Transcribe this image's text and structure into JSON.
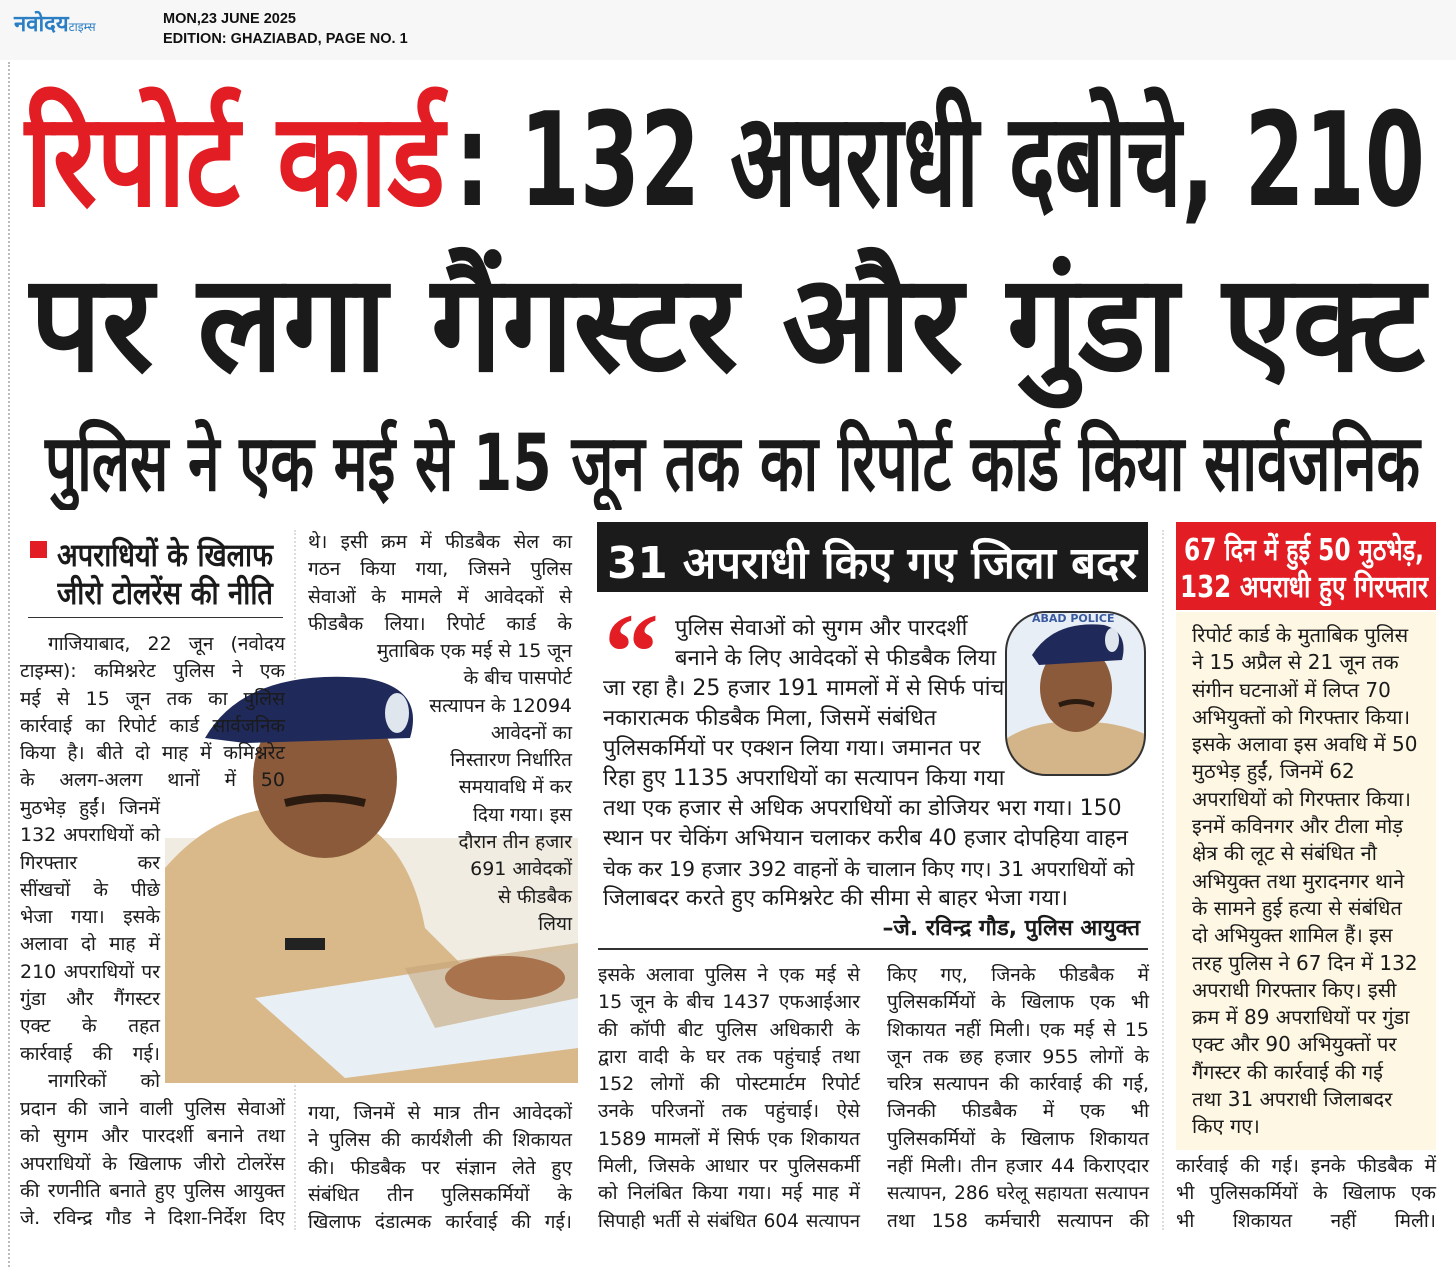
{
  "masthead": {
    "logo_main": "नवोदय",
    "logo_sub": "टाइम्स",
    "date": "MON,23 JUNE 2025",
    "edition": "EDITION: GHAZIABAD, PAGE NO. 1"
  },
  "headline": {
    "highlight": "रिपोर्ट कार्ड",
    "rest": ": 132 अपराधी दबोचे, 210",
    "line2": "पर लगा गैंगस्टर और गुंडा एक्ट"
  },
  "subheadline": "पुलिस ने एक मई से 15 जून तक का रिपोर्ट कार्ड किया सार्वजनिक",
  "left_story": {
    "kicker": [
      "अपराधियों के खिलाफ",
      "जीरो टोलरेंस की नीति"
    ],
    "col1_top": [
      "गाजियाबाद, 22 जून (नवोदय",
      "टाइम्स): कमिश्नरेट पुलिस ने एक",
      "मई से 15 जून तक का पुलिस",
      "कार्रवाई का रिपोर्ट कार्ड सार्वजनिक",
      "किया है। बीते दो माह में कमिश्नरेट",
      "के अलग-अलग थानों में 50"
    ],
    "col1_mid": [
      "मुठभेड़ हुईं। जिनमें",
      "132 अपराधियों को",
      "गिरफ्तार कर",
      "सींखचों के पीछे",
      "भेजा गया। इसके",
      "अलावा दो माह में",
      "210 अपराधियों पर",
      "गुंडा और गैंगस्टर",
      "एक्ट के तहत",
      "कार्रवाई की गई।",
      "नागरिकों को"
    ],
    "col1_bottom": [
      "प्रदान की जाने वाली पुलिस सेवाओं",
      "को सुगम और पारदर्शी बनाने तथा",
      "अपराधियों के खिलाफ जीरो टोलरेंस",
      "की रणनीति बनाते हुए पुलिस आयुक्त",
      "जे. रविन्द्र गौड ने दिशा-निर्देश दिए"
    ],
    "col2_top": [
      "थे। इसी क्रम में फीडबैक सेल का",
      "गठन किया गया, जिसने पुलिस",
      "सेवाओं के मामले में आवेदकों से",
      "फीडबैक लिया। रिपोर्ट कार्ड के"
    ],
    "col2_mid": [
      "मुताबिक एक मई से 15 जून",
      "के बीच पासपोर्ट",
      "सत्यापन के 12094",
      "आवेदनों का",
      "निस्तारण निर्धारित",
      "समयावधि में कर",
      "दिया गया। इस",
      "दौरान तीन हजार",
      "691 आवेदकों",
      "से फीडबैक",
      "लिया"
    ],
    "col2_bottom": [
      "गया, जिनमें से मात्र तीन आवेदकों",
      "ने पुलिस की कार्यशैली की शिकायत",
      "की। फीडबैक पर संज्ञान लेते हुए",
      "संबंधित तीन पुलिसकर्मियों के",
      "खिलाफ दंडात्मक कार्रवाई की गई।"
    ]
  },
  "middle_story": {
    "banner": "31 अपराधी किए गए  जिला बदर",
    "quote_lines": [
      "पुलिस सेवाओं को सुगम और पारदर्शी",
      "बनाने के लिए आवेदकों से फीडबैक लिया",
      "जा रहा है। 25 हजार 191 मामलों में से सिर्फ पांच में",
      "नकारात्मक फीडबैक मिला, जिसमें संबंधित",
      "पुलिसकर्मियों पर एक्शन लिया गया। जमानत पर",
      "रिहा हुए 1135 अपराधियों का सत्यापन किया गया",
      "तथा एक हजार से अधिक अपराधियों का डोजियर भरा गया। 150",
      "स्थान पर चेकिंग अभियान चलाकर करीब 40 हजार दोपहिया वाहन",
      "चेक कर 19 हजार 392 वाहनों के चालान किए गए। 31 अपराधियों को",
      "जिलाबदर करते हुए कमिश्नरेट की सीमा से बाहर भेजा गया।"
    ],
    "attribution": "–जे. रविन्द्र गौड, पुलिस आयुक्त",
    "inset_photo_text": "ABAD POLICE",
    "col1": [
      "इसके अलावा पुलिस ने एक मई से",
      "15 जून के बीच 1437 एफआईआर",
      "की कॉपी बीट पुलिस अधिकारी के",
      "द्वारा वादी के घर तक पहुंचाई तथा",
      "152 लोगों की पोस्टमार्टम रिपोर्ट",
      "उनके परिजनों तक पहुंचाई। ऐसे",
      "1589 मामलों में सिर्फ एक शिकायत",
      "मिली, जिसके आधार पर पुलिसकर्मी",
      "को निलंबित किया गया। मई माह में",
      "सिपाही भर्ती से संबंधित 604 सत्यापन"
    ],
    "col2": [
      "किए गए, जिनके फीडबैक में",
      "पुलिसकर्मियों के खिलाफ एक भी",
      "शिकायत नहीं मिली। एक मई से 15",
      "जून तक छह हजार 955 लोगों के",
      "चरित्र सत्यापन की कार्रवाई की गई,",
      "जिनकी फीडबैक में एक भी",
      "पुलिसकर्मियों के खिलाफ शिकायत",
      "नहीं मिली। तीन हजार 44 किराएदार",
      "सत्यापन, 286 घरेलू सहायता सत्यापन",
      "तथा 158 कर्मचारी सत्यापन की"
    ]
  },
  "right_story": {
    "heading": [
      "67 दिन में हुई 50 मुठभेड़,",
      "132 अपराधी हुए गिरफ्तार"
    ],
    "box_lines": [
      "रिपोर्ट कार्ड के मुताबिक पुलिस",
      "ने 15 अप्रैल से 21 जून तक",
      "संगीन घटनाओं में लिप्त 70",
      "अभियुक्तों को गिरफ्तार किया।",
      "इसके अलावा इस अवधि में 50",
      "मुठभेड़ हुईं, जिनमें 62",
      "अपराधियों को गिरफ्तार किया।",
      "इनमें कविनगर और टीला मोड़",
      "क्षेत्र की लूट से संबंधित नौ",
      "अभियुक्त तथा मुरादनगर थाने",
      "के सामने हुई हत्या से संबंधित",
      "दो अभियुक्त शामिल हैं। इस",
      "तरह पुलिस ने 67 दिन में 132",
      "अपराधी गिरफ्तार किए। इसी",
      "क्रम में 89 अपराधियों पर गुंडा",
      "एक्ट और 90 अभियुक्तों पर",
      "गैंगस्टर की कार्रवाई की गई",
      "तथा 31 अपराधी जिलाबदर",
      "किए गए।"
    ],
    "bottom_lines": [
      "कार्रवाई की गई। इनके फीडबैक में",
      "भी पुलिसकर्मियों के खिलाफ एक",
      "भी शिकायत नहीं मिली।"
    ]
  },
  "colors": {
    "accent_red": "#e21d24",
    "logo_blue": "#2a7fc4",
    "banner_black": "#1b1b1b",
    "box_cream": "#fdf7e4"
  }
}
